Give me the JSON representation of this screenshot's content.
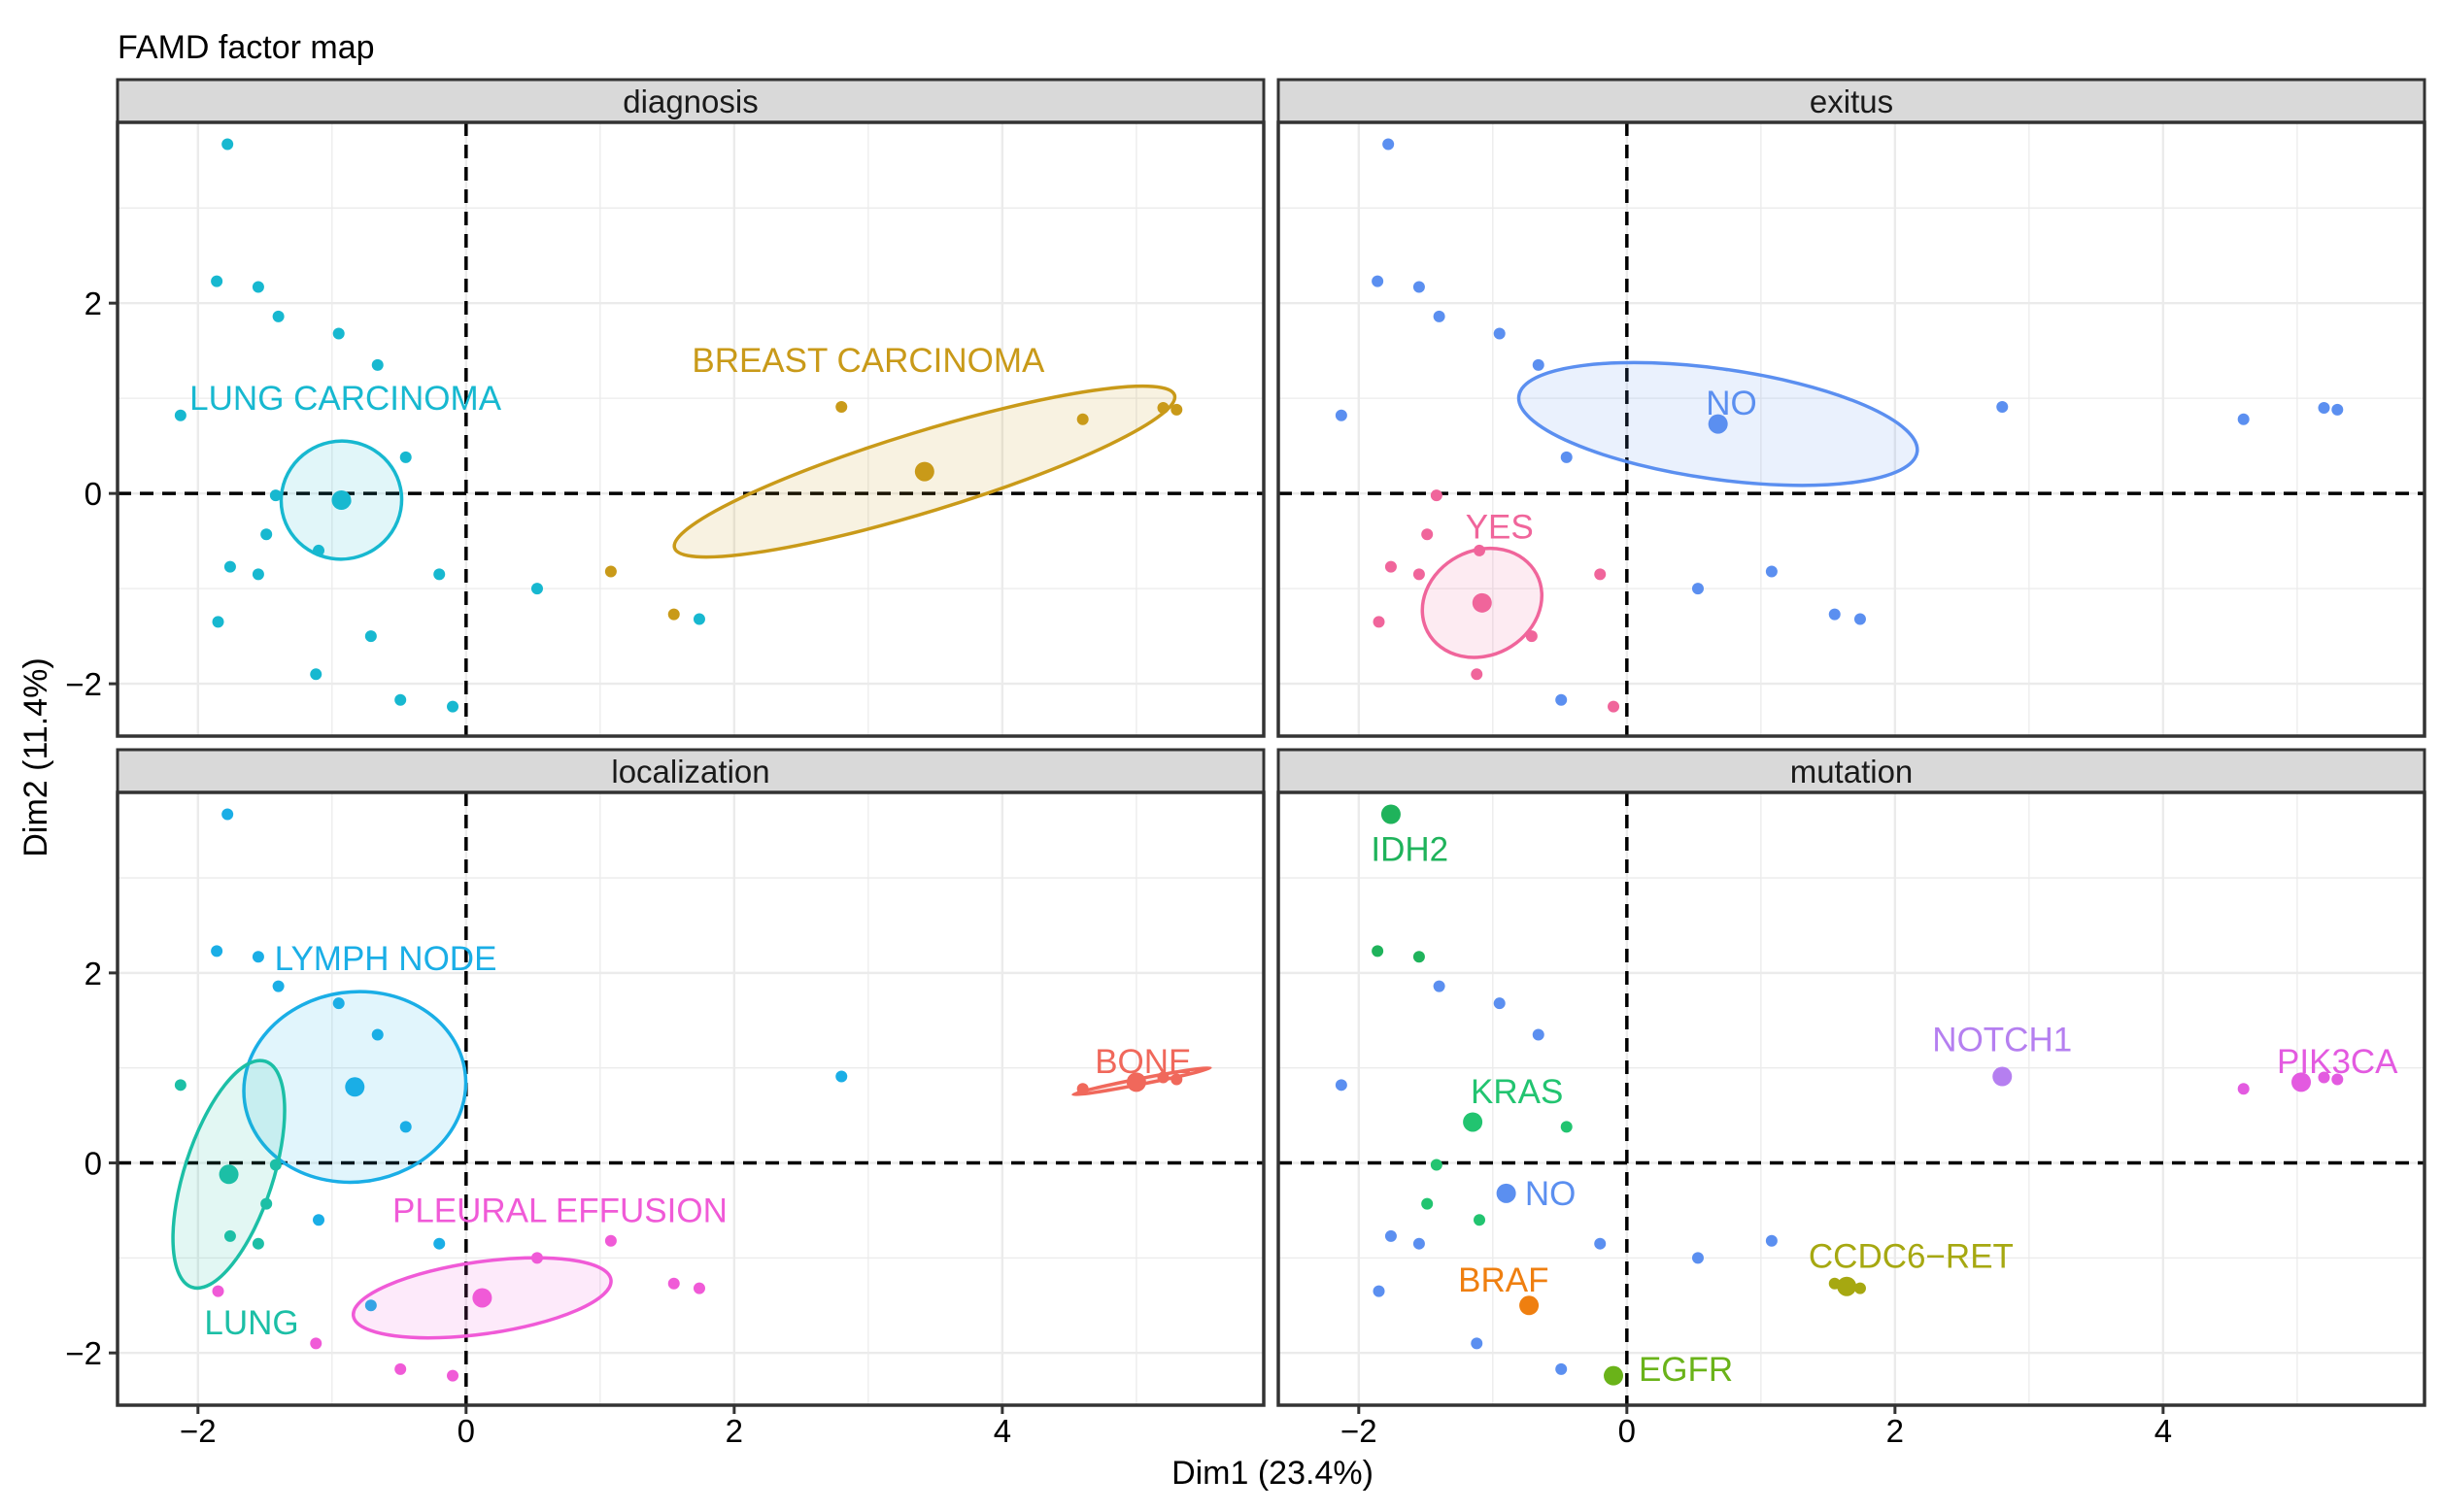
{
  "chart_data": {
    "type": "scatter",
    "title": "FAMD factor map",
    "xlabel": "Dim1 (23.4%)",
    "ylabel": "Dim2 (11.4%)",
    "xlim": [
      -2.6,
      5.95
    ],
    "ylim": [
      -2.55,
      3.9
    ],
    "x_ticks": [
      -2,
      0,
      2,
      4
    ],
    "y_ticks": [
      -2,
      0,
      2
    ],
    "reference_lines": {
      "x": 0,
      "y": 0,
      "style": "dashed"
    },
    "grid": true,
    "colors": {
      "panel_border": "#333333",
      "grid": "#ebebeb",
      "strip_bg": "#d9d9d9",
      "reference_line": "#000000",
      "axis_text": "#000000"
    },
    "panels": [
      {
        "title": "diagnosis",
        "groups": [
          {
            "label": "LUNG CARCINOMA",
            "color": "#17b8d0",
            "center": [
              -0.93,
              -0.07
            ],
            "label_pos": [
              -0.9,
              1.0
            ],
            "ellipse": {
              "cx": -0.93,
              "cy": -0.07,
              "rx": 0.45,
              "ry": 0.62,
              "angle_deg": 12
            },
            "points": [
              [
                -1.78,
                3.67
              ],
              [
                -1.86,
                2.23
              ],
              [
                -1.55,
                2.17
              ],
              [
                -1.4,
                1.86
              ],
              [
                -0.95,
                1.68
              ],
              [
                -0.66,
                1.35
              ],
              [
                -2.13,
                0.82
              ],
              [
                -0.45,
                0.38
              ],
              [
                -1.42,
                -0.02
              ],
              [
                -0.9,
                -0.08
              ],
              [
                -1.49,
                -0.43
              ],
              [
                -1.1,
                -0.6
              ],
              [
                -1.76,
                -0.77
              ],
              [
                -1.55,
                -0.85
              ],
              [
                -0.2,
                -0.85
              ],
              [
                -1.85,
                -1.35
              ],
              [
                -0.71,
                -1.5
              ],
              [
                -1.12,
                -1.9
              ],
              [
                -0.49,
                -2.17
              ],
              [
                -0.1,
                -2.24
              ],
              [
                0.53,
                -1.0
              ],
              [
                1.74,
                -1.32
              ]
            ]
          },
          {
            "label": "BREAST CARCINOMA",
            "color": "#c99a19",
            "center": [
              3.42,
              0.23
            ],
            "label_pos": [
              3.0,
              1.4
            ],
            "ellipse": {
              "cx": 3.42,
              "cy": 0.23,
              "rx": 1.95,
              "ry": 0.42,
              "angle_deg": 17
            },
            "points": [
              [
                2.8,
                0.91
              ],
              [
                4.6,
                0.78
              ],
              [
                5.2,
                0.9
              ],
              [
                5.3,
                0.88
              ],
              [
                1.08,
                -0.82
              ],
              [
                1.55,
                -1.27
              ]
            ]
          }
        ]
      },
      {
        "title": "exitus",
        "groups": [
          {
            "label": "NO",
            "color": "#5b8ff0",
            "center": [
              0.68,
              0.73
            ],
            "label_pos": [
              0.78,
              0.95
            ],
            "ellipse": {
              "cx": 0.68,
              "cy": 0.73,
              "rx": 1.5,
              "ry": 0.58,
              "angle_deg": -8
            },
            "points": [
              [
                -1.78,
                3.67
              ],
              [
                -1.86,
                2.23
              ],
              [
                -1.55,
                2.17
              ],
              [
                -1.4,
                1.86
              ],
              [
                -0.95,
                1.68
              ],
              [
                -0.66,
                1.35
              ],
              [
                -2.13,
                0.82
              ],
              [
                -0.45,
                0.38
              ],
              [
                2.8,
                0.91
              ],
              [
                4.6,
                0.78
              ],
              [
                5.2,
                0.9
              ],
              [
                5.3,
                0.88
              ],
              [
                0.53,
                -1.0
              ],
              [
                1.08,
                -0.82
              ],
              [
                1.55,
                -1.27
              ],
              [
                1.74,
                -1.32
              ],
              [
                -0.49,
                -2.17
              ]
            ]
          },
          {
            "label": "YES",
            "color": "#f0659b",
            "center": [
              -1.08,
              -1.15
            ],
            "label_pos": [
              -0.95,
              -0.35
            ],
            "ellipse": {
              "cx": -1.08,
              "cy": -1.15,
              "rx": 0.46,
              "ry": 0.55,
              "angle_deg": 28
            },
            "points": [
              [
                -1.42,
                -0.02
              ],
              [
                -1.49,
                -0.43
              ],
              [
                -1.1,
                -0.6
              ],
              [
                -1.76,
                -0.77
              ],
              [
                -1.55,
                -0.85
              ],
              [
                -0.2,
                -0.85
              ],
              [
                -1.85,
                -1.35
              ],
              [
                -0.71,
                -1.5
              ],
              [
                -1.12,
                -1.9
              ],
              [
                -0.1,
                -2.24
              ]
            ]
          }
        ]
      },
      {
        "title": "localization",
        "groups": [
          {
            "label": "LYMPH NODE",
            "color": "#1aaee6",
            "center": [
              -0.83,
              0.8
            ],
            "label_pos": [
              -0.6,
              2.15
            ],
            "ellipse": {
              "cx": -0.83,
              "cy": 0.8,
              "rx": 0.83,
              "ry": 1.0,
              "angle_deg": 8
            },
            "points": [
              [
                -1.78,
                3.67
              ],
              [
                -1.86,
                2.23
              ],
              [
                -1.55,
                2.17
              ],
              [
                -1.4,
                1.86
              ],
              [
                -0.95,
                1.68
              ],
              [
                -0.66,
                1.35
              ],
              [
                -0.45,
                0.38
              ],
              [
                2.8,
                0.91
              ],
              [
                -0.2,
                -0.85
              ],
              [
                -1.1,
                -0.6
              ],
              [
                -0.71,
                -1.5
              ]
            ]
          },
          {
            "label": "LUNG",
            "color": "#1cbfa6",
            "center": [
              -1.77,
              -0.12
            ],
            "label_pos": [
              -1.6,
              -1.68
            ],
            "ellipse": {
              "cx": -1.77,
              "cy": -0.12,
              "rx": 0.33,
              "ry": 1.25,
              "angle_deg": -18
            },
            "points": [
              [
                -2.13,
                0.82
              ],
              [
                -1.42,
                -0.02
              ],
              [
                -1.49,
                -0.43
              ],
              [
                -1.76,
                -0.77
              ],
              [
                -1.55,
                -0.85
              ]
            ]
          },
          {
            "label": "BONE",
            "color": "#f0685b",
            "center": [
              5.0,
              0.85
            ],
            "label_pos": [
              5.05,
              1.07
            ],
            "ellipse": {
              "cx": 5.04,
              "cy": 0.86,
              "rx": 0.52,
              "ry": 0.03,
              "angle_deg": 11
            },
            "points": [
              [
                4.6,
                0.78
              ],
              [
                5.2,
                0.9
              ],
              [
                5.3,
                0.88
              ]
            ]
          },
          {
            "label": "PLEURAL EFFUSION",
            "color": "#f05ad7",
            "center": [
              0.12,
              -1.42
            ],
            "label_pos": [
              0.7,
              -0.5
            ],
            "ellipse": {
              "cx": 0.12,
              "cy": -1.42,
              "rx": 0.97,
              "ry": 0.38,
              "angle_deg": 8
            },
            "points": [
              [
                -1.85,
                -1.35
              ],
              [
                -1.12,
                -1.9
              ],
              [
                -0.49,
                -2.17
              ],
              [
                -0.1,
                -2.24
              ],
              [
                0.53,
                -1.0
              ],
              [
                1.08,
                -0.82
              ],
              [
                1.55,
                -1.27
              ],
              [
                1.74,
                -1.32
              ]
            ]
          }
        ]
      },
      {
        "title": "mutation",
        "groups": [
          {
            "label": "IDH2",
            "color": "#1fb35b",
            "center": [
              -1.76,
              3.67
            ],
            "label_pos": [
              -1.62,
              3.3
            ],
            "points": [
              [
                -1.86,
                2.23
              ],
              [
                -1.55,
                2.17
              ]
            ]
          },
          {
            "label": "KRAS",
            "color": "#22c470",
            "center": [
              -1.15,
              0.43
            ],
            "label_pos": [
              -0.82,
              0.75
            ],
            "points": [
              [
                -0.45,
                0.38
              ],
              [
                -1.42,
                -0.02
              ],
              [
                -1.49,
                -0.43
              ],
              [
                -1.1,
                -0.6
              ]
            ]
          },
          {
            "label": "NO",
            "color": "#5b8ff0",
            "center": [
              -0.9,
              -0.32
            ],
            "label_pos": [
              -0.57,
              -0.32
            ],
            "points": [
              [
                -1.4,
                1.86
              ],
              [
                -0.95,
                1.68
              ],
              [
                -0.66,
                1.35
              ],
              [
                -2.13,
                0.82
              ],
              [
                -1.76,
                -0.77
              ],
              [
                -1.55,
                -0.85
              ],
              [
                -0.2,
                -0.85
              ],
              [
                -1.85,
                -1.35
              ],
              [
                -1.12,
                -1.9
              ],
              [
                -0.49,
                -2.17
              ],
              [
                0.53,
                -1.0
              ],
              [
                1.08,
                -0.82
              ]
            ]
          },
          {
            "label": "BRAF",
            "color": "#ef7f10",
            "center": [
              -0.73,
              -1.5
            ],
            "label_pos": [
              -0.92,
              -1.23
            ],
            "points": []
          },
          {
            "label": "EGFR",
            "color": "#6ab319",
            "center": [
              -0.1,
              -2.24
            ],
            "label_pos": [
              0.44,
              -2.17
            ],
            "points": []
          },
          {
            "label": "CCDC6−RET",
            "color": "#a6a811",
            "center": [
              1.64,
              -1.3
            ],
            "label_pos": [
              2.12,
              -0.98
            ],
            "points": [
              [
                1.55,
                -1.27
              ],
              [
                1.74,
                -1.32
              ]
            ]
          },
          {
            "label": "NOTCH1",
            "color": "#b57ff0",
            "center": [
              2.8,
              0.91
            ],
            "label_pos": [
              2.8,
              1.3
            ],
            "points": []
          },
          {
            "label": "PIK3CA",
            "color": "#e35ae0",
            "center": [
              5.03,
              0.85
            ],
            "label_pos": [
              5.3,
              1.07
            ],
            "points": [
              [
                4.6,
                0.78
              ],
              [
                5.2,
                0.9
              ],
              [
                5.3,
                0.88
              ]
            ]
          }
        ]
      }
    ]
  }
}
